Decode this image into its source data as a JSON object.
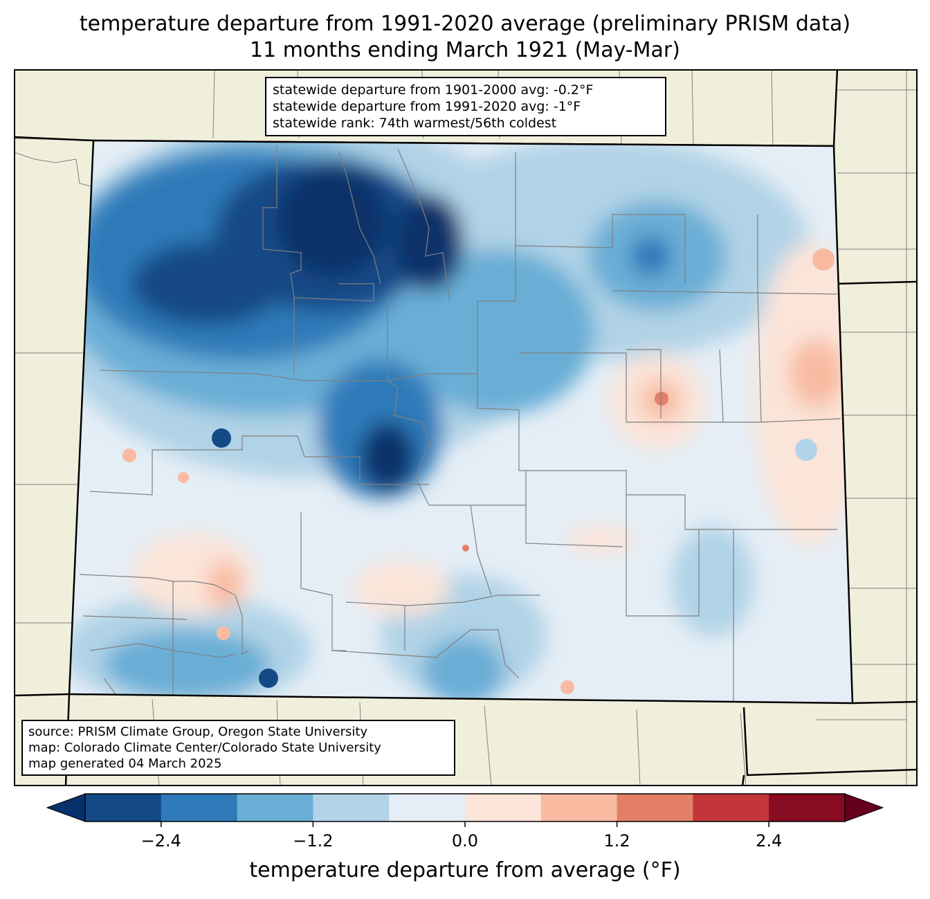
{
  "header": {
    "title_line1": "temperature departure from 1991-2020 average (preliminary PRISM data)",
    "title_line2": "11 months ending March 1921 (May-Mar)"
  },
  "stats": {
    "line1": "statewide departure from 1901-2000 avg: -0.2°F",
    "line2": "statewide departure from 1991-2020 avg: -1°F",
    "line3": "statewide rank: 74th warmest/56th coldest"
  },
  "source": {
    "line1": "source: PRISM Climate Group, Oregon State University",
    "line2": "map: Colorado Climate Center/Colorado State University",
    "line3": "map generated 04 March 2025"
  },
  "colorbar": {
    "label": "temperature departure from average (°F)",
    "ticks": [
      "−2.4",
      "−1.2",
      "0.0",
      "1.2",
      "2.4"
    ],
    "bins": [
      "#08306b",
      "#134a86",
      "#2f7ab9",
      "#6aaed6",
      "#b1d3e7",
      "#e5eef6",
      "#fbe4d8",
      "#f8bba2",
      "#e37f67",
      "#c23639",
      "#870b21",
      "#67001f"
    ]
  },
  "map_colors": {
    "land": "#f0efdc",
    "state_border": "#000000",
    "county_border": "#808080"
  }
}
